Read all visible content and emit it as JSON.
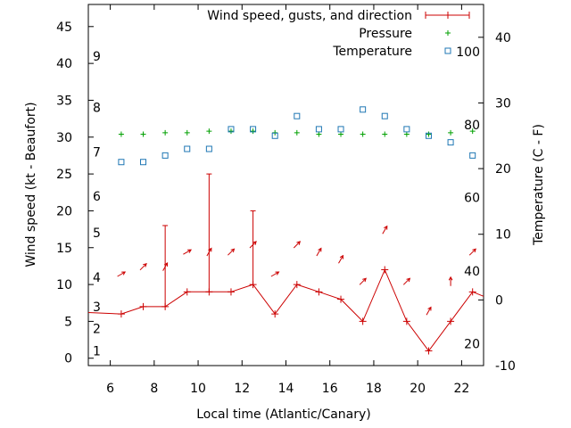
{
  "chart_data": {
    "type": "line",
    "xlabel": "Local time (Atlantic/Canary)",
    "ylabel_left": "Wind speed (kt - Beaufort)",
    "ylabel_right": "Temperature (C - F)",
    "xlim": [
      5,
      23
    ],
    "ylim_left": [
      -1,
      48
    ],
    "ylim_right": [
      -10,
      45
    ],
    "x_ticks": [
      6,
      8,
      10,
      12,
      14,
      16,
      18,
      20,
      22
    ],
    "y_ticks_left": [
      0,
      5,
      10,
      15,
      20,
      25,
      30,
      35,
      40,
      45
    ],
    "y_ticks_right": [
      -10,
      0,
      10,
      20,
      30,
      40
    ],
    "beaufort_scale": [
      {
        "label": "1",
        "kt": 1
      },
      {
        "label": "2",
        "kt": 4
      },
      {
        "label": "3",
        "kt": 7
      },
      {
        "label": "4",
        "kt": 11
      },
      {
        "label": "5",
        "kt": 17
      },
      {
        "label": "6",
        "kt": 22
      },
      {
        "label": "7",
        "kt": 28
      },
      {
        "label": "8",
        "kt": 34
      },
      {
        "label": "9",
        "kt": 41
      }
    ],
    "fahrenheit_scale": [
      {
        "label": "20",
        "c": -6.7
      },
      {
        "label": "40",
        "c": 4.4
      },
      {
        "label": "60",
        "c": 15.6
      },
      {
        "label": "80",
        "c": 26.7
      },
      {
        "label": "100",
        "c": 37.8
      }
    ],
    "legend": {
      "position": "top-right",
      "entries": [
        "Wind speed, gusts, and direction",
        "Pressure",
        "Temperature"
      ]
    },
    "series": [
      {
        "name": "Wind speed, gusts, and direction",
        "color": "#cc0000",
        "x": [
          5,
          6.5,
          7.5,
          8.5,
          9.5,
          10.5,
          11.5,
          12.5,
          13.5,
          14.5,
          15.5,
          16.5,
          17.5,
          18.5,
          19.5,
          20.5,
          21.5,
          22.5,
          23
        ],
        "speed": [
          6.2,
          6,
          7,
          7,
          9,
          9,
          9,
          10,
          6,
          10,
          9,
          8,
          5,
          12,
          5,
          1,
          5,
          9,
          8.4
        ],
        "gust": [
          null,
          null,
          null,
          18,
          null,
          25,
          null,
          20,
          null,
          null,
          null,
          null,
          null,
          null,
          null,
          null,
          null,
          null,
          null
        ],
        "direction_deg": [
          null,
          30,
          45,
          60,
          30,
          60,
          45,
          45,
          30,
          45,
          60,
          60,
          45,
          60,
          45,
          60,
          90,
          45,
          null
        ]
      },
      {
        "name": "Pressure",
        "color": "#00a000",
        "x": [
          6.5,
          7.5,
          8.5,
          9.5,
          10.5,
          11.5,
          12.5,
          13.5,
          14.5,
          15.5,
          16.5,
          17.5,
          18.5,
          19.5,
          20.5,
          21.5,
          22.5
        ],
        "values": [
          30.4,
          30.4,
          30.6,
          30.6,
          30.8,
          30.8,
          30.8,
          30.6,
          30.6,
          30.4,
          30.4,
          30.4,
          30.4,
          30.4,
          30.4,
          30.6,
          30.8
        ]
      },
      {
        "name": "Temperature",
        "color": "#1f77b4",
        "x": [
          6.5,
          7.5,
          8.5,
          9.5,
          10.5,
          11.5,
          12.5,
          13.5,
          14.5,
          15.5,
          16.5,
          17.5,
          18.5,
          19.5,
          20.5,
          21.5,
          22.5
        ],
        "values": [
          21,
          21,
          22,
          23,
          23,
          26,
          26,
          25,
          28,
          26,
          26,
          29,
          28,
          26,
          25,
          24,
          22
        ]
      }
    ]
  }
}
